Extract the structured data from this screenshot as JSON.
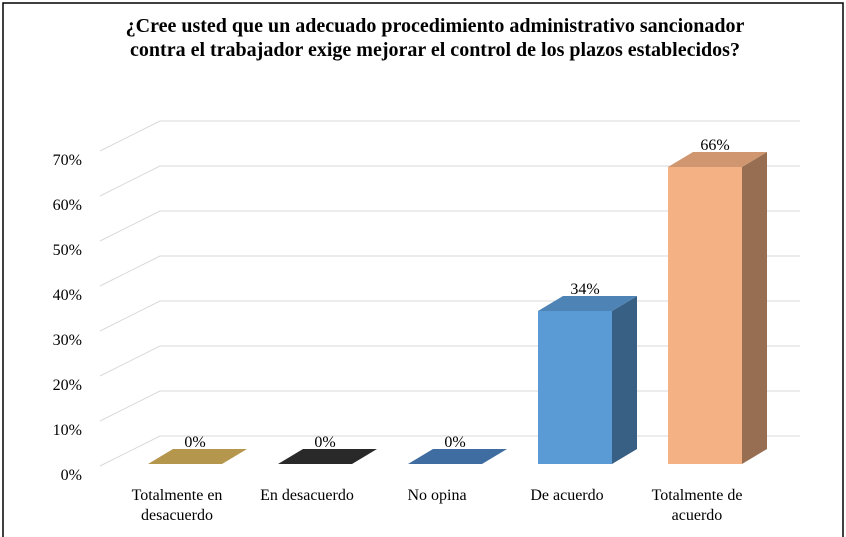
{
  "chart_data": {
    "type": "bar3d",
    "title": "¿Cree usted que un adecuado procedimiento administrativo sancionador contra el trabajador exige mejorar el control de los plazos establecidos?",
    "categories": [
      "Totalmente en desacuerdo",
      "En desacuerdo",
      "No opina",
      "De acuerdo",
      "Totalmente de acuerdo"
    ],
    "values": [
      0,
      0,
      0,
      34,
      66
    ],
    "value_labels": [
      "0%",
      "0%",
      "0%",
      "34%",
      "66%"
    ],
    "colors": [
      "#d4b05a",
      "#303030",
      "#4a80bd",
      "#5b9bd5",
      "#f4b183"
    ],
    "ylim": [
      0,
      70
    ],
    "yticks": [
      {
        "value": 0,
        "label": "0%"
      },
      {
        "value": 10,
        "label": "10%"
      },
      {
        "value": 20,
        "label": "20%"
      },
      {
        "value": 30,
        "label": "30%"
      },
      {
        "value": 40,
        "label": "40%"
      },
      {
        "value": 50,
        "label": "50%"
      },
      {
        "value": 60,
        "label": "60%"
      },
      {
        "value": 70,
        "label": "70%"
      }
    ],
    "grid": true
  }
}
